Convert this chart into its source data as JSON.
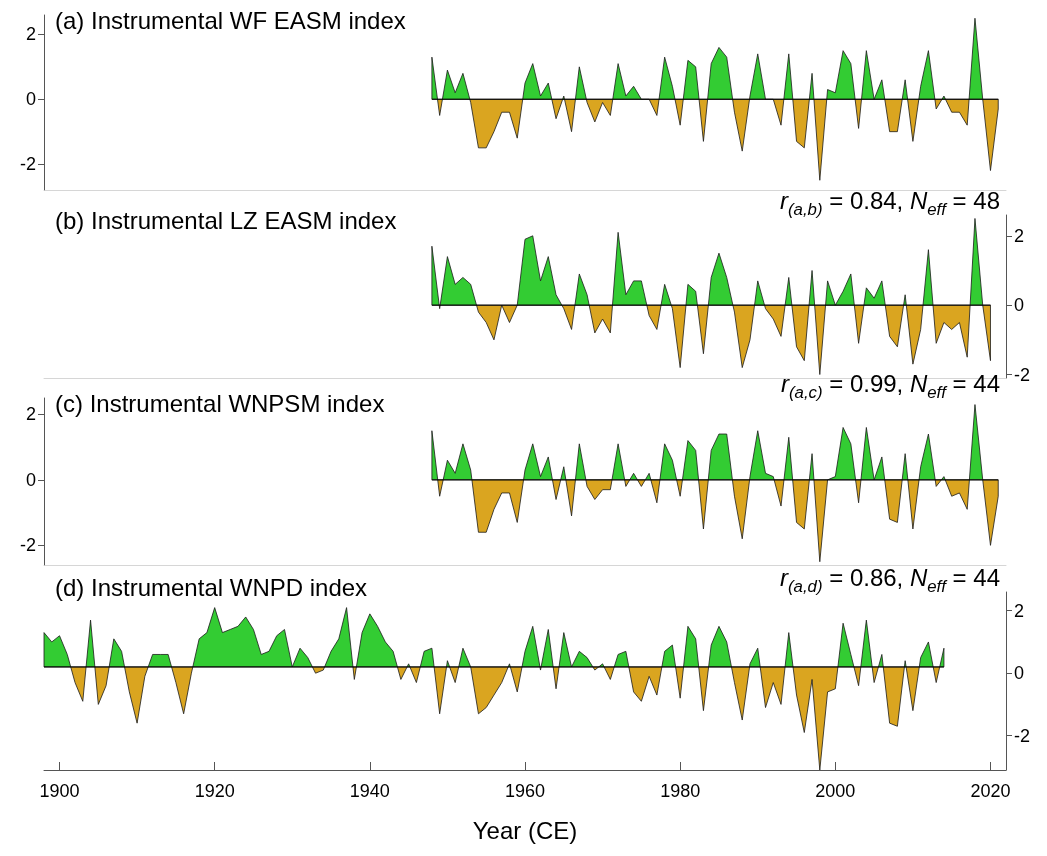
{
  "chart_data": [
    {
      "type": "area",
      "title": "(a) Instrumental WF EASM index",
      "xlim": [
        1898,
        2022
      ],
      "ylim": [
        -2.8,
        2.6
      ],
      "yticks": [
        -2,
        0,
        2
      ],
      "tick_labels": "y",
      "ref_lines": [
        {
          "axis": "y",
          "value": 0,
          "color": "#000000"
        }
      ],
      "x": [
        1948,
        1949,
        1950,
        1951,
        1952,
        1953,
        1954,
        1955,
        1956,
        1957,
        1958,
        1959,
        1960,
        1961,
        1962,
        1963,
        1964,
        1965,
        1966,
        1967,
        1968,
        1969,
        1970,
        1971,
        1972,
        1973,
        1974,
        1975,
        1976,
        1977,
        1978,
        1979,
        1980,
        1981,
        1982,
        1983,
        1984,
        1985,
        1986,
        1987,
        1988,
        1989,
        1990,
        1991,
        1992,
        1993,
        1994,
        1995,
        1996,
        1997,
        1998,
        1999,
        2000,
        2001,
        2002,
        2003,
        2004,
        2005,
        2006,
        2007,
        2008,
        2009,
        2010,
        2011,
        2012,
        2013,
        2014,
        2015,
        2016,
        2017,
        2018,
        2019,
        2020,
        2021
      ],
      "series": [
        {
          "color": "#1a1a1a",
          "values": [
            1.3,
            -0.5,
            0.9,
            0.2,
            0.8,
            -0.1,
            -1.5,
            -1.5,
            -1.0,
            -0.4,
            -0.4,
            -1.2,
            0.5,
            1.1,
            0.1,
            0.5,
            -0.6,
            0.1,
            -1.0,
            1.0,
            -0.1,
            -0.7,
            -0.1,
            -0.5,
            1.1,
            0.1,
            0.4,
            0,
            0,
            -0.5,
            1.3,
            0.4,
            -0.8,
            1.2,
            1.0,
            -1.3,
            1.1,
            1.6,
            1.3,
            -0.4,
            -1.6,
            0.1,
            1.4,
            0,
            0,
            -0.8,
            1.4,
            -1.3,
            -1.5,
            0.8,
            -2.5,
            0.3,
            0.2,
            1.5,
            1.1,
            -0.9,
            1.5,
            0,
            0.6,
            -1.0,
            -1.0,
            0.6,
            -1.3,
            0.4,
            1.5,
            -0.3,
            0.1,
            -0.4,
            -0.4,
            -0.8,
            2.5,
            0,
            -2.2,
            -0.3
          ],
          "colors": [
            "#33cc33",
            "#daa520",
            "#33cc33",
            "#33cc33",
            "#33cc33",
            "#daa520",
            "#daa520",
            "#daa520",
            "#daa520",
            "#daa520",
            "#daa520",
            "#daa520",
            "#33cc33",
            "#33cc33",
            "#33cc33",
            "#33cc33",
            "#daa520",
            "#33cc33",
            "#daa520",
            "#33cc33",
            "#daa520",
            "#daa520",
            "#daa520",
            "#daa520",
            "#33cc33",
            "#33cc33",
            "#33cc33",
            "#daa520",
            "#daa520",
            "#daa520",
            "#33cc33",
            "#33cc33",
            "#daa520",
            "#33cc33",
            "#33cc33",
            "#daa520",
            "#33cc33",
            "#33cc33",
            "#33cc33",
            "#daa520",
            "#daa520",
            "#33cc33",
            "#33cc33",
            "#daa520",
            "#daa520",
            "#daa520",
            "#33cc33",
            "#daa520",
            "#daa520",
            "#33cc33",
            "#daa520",
            "#33cc33",
            "#33cc33",
            "#33cc33",
            "#33cc33",
            "#daa520",
            "#33cc33",
            "#daa520",
            "#33cc33",
            "#daa520",
            "#daa520",
            "#33cc33",
            "#daa520",
            "#33cc33",
            "#33cc33",
            "#daa520",
            "#33cc33",
            "#daa520",
            "#daa520",
            "#daa520",
            "#33cc33",
            "#daa520",
            "#daa520",
            "#daa520"
          ]
        }
      ]
    },
    {
      "type": "area",
      "title": "(b) Instrumental LZ EASM index",
      "annotations": [
        "r$_{(a,b)}$ = 0.84, N$_{eff}$ = 48"
      ],
      "xlim": [
        1898,
        2022
      ],
      "ylim": [
        -2.1,
        2.6
      ],
      "yticks": [
        -2,
        0,
        2
      ],
      "tick_labels": "y",
      "ref_lines": [
        {
          "axis": "y",
          "value": 0,
          "color": "#000000"
        }
      ],
      "x": [
        1948,
        1949,
        1950,
        1951,
        1952,
        1953,
        1954,
        1955,
        1956,
        1957,
        1958,
        1959,
        1960,
        1961,
        1962,
        1963,
        1964,
        1965,
        1966,
        1967,
        1968,
        1969,
        1970,
        1971,
        1972,
        1973,
        1974,
        1975,
        1976,
        1977,
        1978,
        1979,
        1980,
        1981,
        1982,
        1983,
        1984,
        1985,
        1986,
        1987,
        1988,
        1989,
        1990,
        1991,
        1992,
        1993,
        1994,
        1995,
        1996,
        1997,
        1998,
        1999,
        2000,
        2001,
        2002,
        2003,
        2004,
        2005,
        2006,
        2007,
        2008,
        2009,
        2010,
        2011,
        2012,
        2013,
        2014,
        2015,
        2016,
        2017,
        2018,
        2019,
        2020
      ],
      "series": [
        {
          "color": "#1a1a1a",
          "values": [
            1.7,
            -0.1,
            1.4,
            0.6,
            0.8,
            0.6,
            -0.2,
            -0.5,
            -1.0,
            0.0,
            -0.5,
            0.0,
            1.9,
            2.0,
            0.7,
            1.4,
            0.3,
            -0.1,
            -0.7,
            0.9,
            0.3,
            -0.8,
            -0.4,
            -0.8,
            2.1,
            0.3,
            0.7,
            0.7,
            -0.3,
            -0.7,
            0.6,
            -0.1,
            -1.8,
            0.6,
            0.4,
            -1.4,
            0.8,
            1.5,
            0.8,
            -0.2,
            -1.8,
            -1.0,
            0.7,
            -0.1,
            -0.4,
            -0.9,
            0.8,
            -1.2,
            -1.6,
            1.0,
            -2.0,
            0.7,
            0,
            0.4,
            0.9,
            -1.1,
            0.5,
            0.2,
            0.7,
            -0.9,
            -1.2,
            0.3,
            -1.7,
            -0.7,
            1.6,
            -1.1,
            -0.5,
            -0.7,
            -0.5,
            -1.5,
            2.5,
            0,
            -1.6
          ],
          "colors": [
            "#33cc33",
            "#daa520",
            "#33cc33",
            "#33cc33",
            "#33cc33",
            "#33cc33",
            "#daa520",
            "#daa520",
            "#daa520",
            "#daa520",
            "#daa520",
            "#daa520",
            "#33cc33",
            "#33cc33",
            "#33cc33",
            "#33cc33",
            "#33cc33",
            "#daa520",
            "#daa520",
            "#33cc33",
            "#33cc33",
            "#daa520",
            "#daa520",
            "#daa520",
            "#33cc33",
            "#33cc33",
            "#33cc33",
            "#33cc33",
            "#daa520",
            "#daa520",
            "#33cc33",
            "#daa520",
            "#daa520",
            "#33cc33",
            "#33cc33",
            "#daa520",
            "#33cc33",
            "#33cc33",
            "#33cc33",
            "#daa520",
            "#daa520",
            "#daa520",
            "#33cc33",
            "#daa520",
            "#daa520",
            "#daa520",
            "#33cc33",
            "#daa520",
            "#daa520",
            "#33cc33",
            "#daa520",
            "#33cc33",
            "#daa520",
            "#33cc33",
            "#33cc33",
            "#daa520",
            "#33cc33",
            "#33cc33",
            "#33cc33",
            "#daa520",
            "#daa520",
            "#33cc33",
            "#daa520",
            "#daa520",
            "#33cc33",
            "#daa520",
            "#daa520",
            "#daa520",
            "#daa520",
            "#daa520",
            "#33cc33",
            "#daa520",
            "#daa520"
          ]
        }
      ]
    },
    {
      "type": "area",
      "title": "(c) Instrumental WNPSM index",
      "annotations": [
        "r$_{(a,c)}$ = 0.99, N$_{eff}$ = 44"
      ],
      "xlim": [
        1898,
        2022
      ],
      "ylim": [
        -2.6,
        2.5
      ],
      "yticks": [
        -2,
        0,
        2
      ],
      "tick_labels": "y",
      "ref_lines": [
        {
          "axis": "y",
          "value": 0,
          "color": "#000000"
        }
      ],
      "x": [
        1948,
        1949,
        1950,
        1951,
        1952,
        1953,
        1954,
        1955,
        1956,
        1957,
        1958,
        1959,
        1960,
        1961,
        1962,
        1963,
        1964,
        1965,
        1966,
        1967,
        1968,
        1969,
        1970,
        1971,
        1972,
        1973,
        1974,
        1975,
        1976,
        1977,
        1978,
        1979,
        1980,
        1981,
        1982,
        1983,
        1984,
        1985,
        1986,
        1987,
        1988,
        1989,
        1990,
        1991,
        1992,
        1993,
        1994,
        1995,
        1996,
        1997,
        1998,
        1999,
        2000,
        2001,
        2002,
        2003,
        2004,
        2005,
        2006,
        2007,
        2008,
        2009,
        2010,
        2011,
        2012,
        2013,
        2014,
        2015,
        2016,
        2017,
        2018,
        2019,
        2020,
        2021
      ],
      "series": [
        {
          "color": "#1a1a1a",
          "values": [
            1.5,
            -0.5,
            0.6,
            0.2,
            1.1,
            0.3,
            -1.6,
            -1.6,
            -0.9,
            -0.4,
            -0.4,
            -1.3,
            0.3,
            1.1,
            0.1,
            0.7,
            -0.6,
            0.4,
            -1.1,
            1.1,
            -0.2,
            -0.6,
            -0.3,
            -0.3,
            1.1,
            -0.2,
            0.2,
            -0.2,
            0.2,
            -0.7,
            1.1,
            0.6,
            -0.5,
            1.2,
            0.9,
            -1.5,
            0.9,
            1.4,
            1.4,
            -0.5,
            -1.8,
            0.1,
            1.5,
            0.2,
            0.1,
            -0.8,
            1.3,
            -1.3,
            -1.5,
            0.8,
            -2.5,
            0.0,
            0.1,
            1.6,
            1.1,
            -0.7,
            1.6,
            0.0,
            0.7,
            -1.2,
            -1.3,
            0.8,
            -1.5,
            0.4,
            1.4,
            -0.2,
            0.1,
            -0.5,
            -0.4,
            -0.9,
            2.3,
            0,
            -2.0,
            -0.5
          ],
          "colors": [
            "#33cc33",
            "#daa520",
            "#33cc33",
            "#33cc33",
            "#33cc33",
            "#33cc33",
            "#daa520",
            "#daa520",
            "#daa520",
            "#daa520",
            "#daa520",
            "#daa520",
            "#33cc33",
            "#33cc33",
            "#33cc33",
            "#33cc33",
            "#daa520",
            "#33cc33",
            "#daa520",
            "#33cc33",
            "#daa520",
            "#daa520",
            "#daa520",
            "#daa520",
            "#33cc33",
            "#daa520",
            "#33cc33",
            "#daa520",
            "#33cc33",
            "#daa520",
            "#33cc33",
            "#33cc33",
            "#daa520",
            "#33cc33",
            "#33cc33",
            "#daa520",
            "#33cc33",
            "#33cc33",
            "#33cc33",
            "#daa520",
            "#daa520",
            "#33cc33",
            "#33cc33",
            "#33cc33",
            "#33cc33",
            "#daa520",
            "#33cc33",
            "#daa520",
            "#daa520",
            "#33cc33",
            "#daa520",
            "#daa520",
            "#33cc33",
            "#33cc33",
            "#33cc33",
            "#daa520",
            "#33cc33",
            "#daa520",
            "#33cc33",
            "#daa520",
            "#daa520",
            "#33cc33",
            "#daa520",
            "#33cc33",
            "#33cc33",
            "#daa520",
            "#33cc33",
            "#daa520",
            "#daa520",
            "#daa520",
            "#33cc33",
            "#daa520",
            "#daa520",
            "#daa520"
          ]
        }
      ]
    },
    {
      "type": "area",
      "title": "(d) Instrumental WNPD index",
      "annotations": [
        "r$_{(a,d)}$ = 0.86, N$_{eff}$ = 44"
      ],
      "xlabel": "Year (CE)",
      "xlim": [
        1898,
        2022
      ],
      "xticks": [
        1900,
        1920,
        1940,
        1960,
        1980,
        2000,
        2020
      ],
      "ylim": [
        -3.1,
        2.6
      ],
      "yticks": [
        -2,
        0,
        2
      ],
      "ref_lines": [
        {
          "axis": "y",
          "value": 0.2,
          "color": "#000000"
        }
      ],
      "x": [
        1898,
        1899,
        1900,
        1901,
        1902,
        1903,
        1904,
        1905,
        1906,
        1907,
        1908,
        1909,
        1910,
        1911,
        1912,
        1913,
        1914,
        1915,
        1916,
        1917,
        1918,
        1919,
        1920,
        1921,
        1922,
        1923,
        1924,
        1925,
        1926,
        1927,
        1928,
        1929,
        1930,
        1931,
        1932,
        1933,
        1934,
        1935,
        1936,
        1937,
        1938,
        1939,
        1940,
        1941,
        1942,
        1943,
        1944,
        1945,
        1946,
        1947,
        1948,
        1949,
        1950,
        1951,
        1952,
        1953,
        1954,
        1955,
        1956,
        1957,
        1958,
        1959,
        1960,
        1961,
        1962,
        1963,
        1964,
        1965,
        1966,
        1967,
        1968,
        1969,
        1970,
        1971,
        1972,
        1973,
        1974,
        1975,
        1976,
        1977,
        1978,
        1979,
        1980,
        1981,
        1982,
        1983,
        1984,
        1985,
        1986,
        1987,
        1988,
        1989,
        1990,
        1991,
        1992,
        1993,
        1994,
        1995,
        1996,
        1997,
        1998,
        1999,
        2000,
        2001,
        2002,
        2003,
        2004,
        2005,
        2006,
        2007,
        2008,
        2009,
        2010,
        2011,
        2012,
        2013,
        2014
      ],
      "series": [
        {
          "color": "#1a1a1a",
          "values": [
            1.3,
            1.0,
            1.2,
            0.6,
            -0.3,
            -0.9,
            1.7,
            -1.0,
            -0.4,
            1.1,
            0.7,
            -0.6,
            -1.6,
            -0.1,
            0.6,
            0.6,
            0.6,
            -0.3,
            -1.3,
            0.0,
            1.1,
            1.3,
            2.1,
            1.3,
            1.4,
            1.5,
            1.8,
            1.4,
            0.6,
            0.7,
            1.2,
            1.4,
            0.2,
            0.8,
            0.5,
            0.0,
            0.1,
            0.7,
            1.1,
            2.1,
            -0.2,
            1.3,
            1.9,
            1.5,
            1.0,
            0.7,
            -0.2,
            0.3,
            -0.3,
            0.7,
            0.8,
            -1.3,
            0.4,
            -0.3,
            0.8,
            0.2,
            -1.3,
            -1.1,
            -0.7,
            -0.3,
            0.3,
            -0.6,
            0.7,
            1.5,
            0.1,
            1.4,
            -0.5,
            1.3,
            0.2,
            0.7,
            0.5,
            0.1,
            0.3,
            -0.2,
            0.6,
            0.7,
            -0.6,
            -0.9,
            -0.1,
            -0.7,
            0.7,
            0.9,
            -0.8,
            1.5,
            1.1,
            -1.2,
            0.9,
            1.5,
            1.0,
            -0.3,
            -1.5,
            0.3,
            0.8,
            -1.1,
            -0.3,
            -1.0,
            1.3,
            -0.7,
            -1.9,
            -0.2,
            -3.1,
            -0.6,
            -0.5,
            1.6,
            0.6,
            -0.4,
            1.7,
            -0.3,
            0.6,
            -1.6,
            -1.7,
            0.4,
            -1.2,
            0.5,
            1.0,
            -0.3,
            0.8
          ],
          "colors": [
            "#33cc33",
            "#33cc33",
            "#33cc33",
            "#33cc33",
            "#daa520",
            "#daa520",
            "#33cc33",
            "#daa520",
            "#daa520",
            "#33cc33",
            "#33cc33",
            "#daa520",
            "#daa520",
            "#daa520",
            "#33cc33",
            "#33cc33",
            "#33cc33",
            "#daa520",
            "#daa520",
            "#daa520",
            "#33cc33",
            "#33cc33",
            "#33cc33",
            "#33cc33",
            "#33cc33",
            "#33cc33",
            "#33cc33",
            "#33cc33",
            "#33cc33",
            "#33cc33",
            "#33cc33",
            "#33cc33",
            "#daa520",
            "#33cc33",
            "#33cc33",
            "#daa520",
            "#daa520",
            "#33cc33",
            "#33cc33",
            "#33cc33",
            "#daa520",
            "#33cc33",
            "#33cc33",
            "#33cc33",
            "#33cc33",
            "#33cc33",
            "#daa520",
            "#33cc33",
            "#daa520",
            "#33cc33",
            "#33cc33",
            "#daa520",
            "#33cc33",
            "#daa520",
            "#33cc33",
            "#daa520",
            "#daa520",
            "#daa520",
            "#daa520",
            "#daa520",
            "#33cc33",
            "#daa520",
            "#33cc33",
            "#33cc33",
            "#daa520",
            "#33cc33",
            "#daa520",
            "#33cc33",
            "#daa520",
            "#33cc33",
            "#33cc33",
            "#daa520",
            "#33cc33",
            "#daa520",
            "#33cc33",
            "#33cc33",
            "#daa520",
            "#daa520",
            "#daa520",
            "#daa520",
            "#33cc33",
            "#33cc33",
            "#daa520",
            "#33cc33",
            "#33cc33",
            "#daa520",
            "#33cc33",
            "#33cc33",
            "#33cc33",
            "#daa520",
            "#daa520",
            "#33cc33",
            "#33cc33",
            "#daa520",
            "#daa520",
            "#daa520",
            "#33cc33",
            "#daa520",
            "#daa520",
            "#daa520",
            "#daa520",
            "#daa520",
            "#daa520",
            "#33cc33",
            "#33cc33",
            "#daa520",
            "#33cc33",
            "#daa520",
            "#33cc33",
            "#daa520",
            "#daa520",
            "#33cc33",
            "#daa520",
            "#33cc33",
            "#33cc33",
            "#daa520",
            "#33cc33"
          ]
        }
      ]
    }
  ]
}
